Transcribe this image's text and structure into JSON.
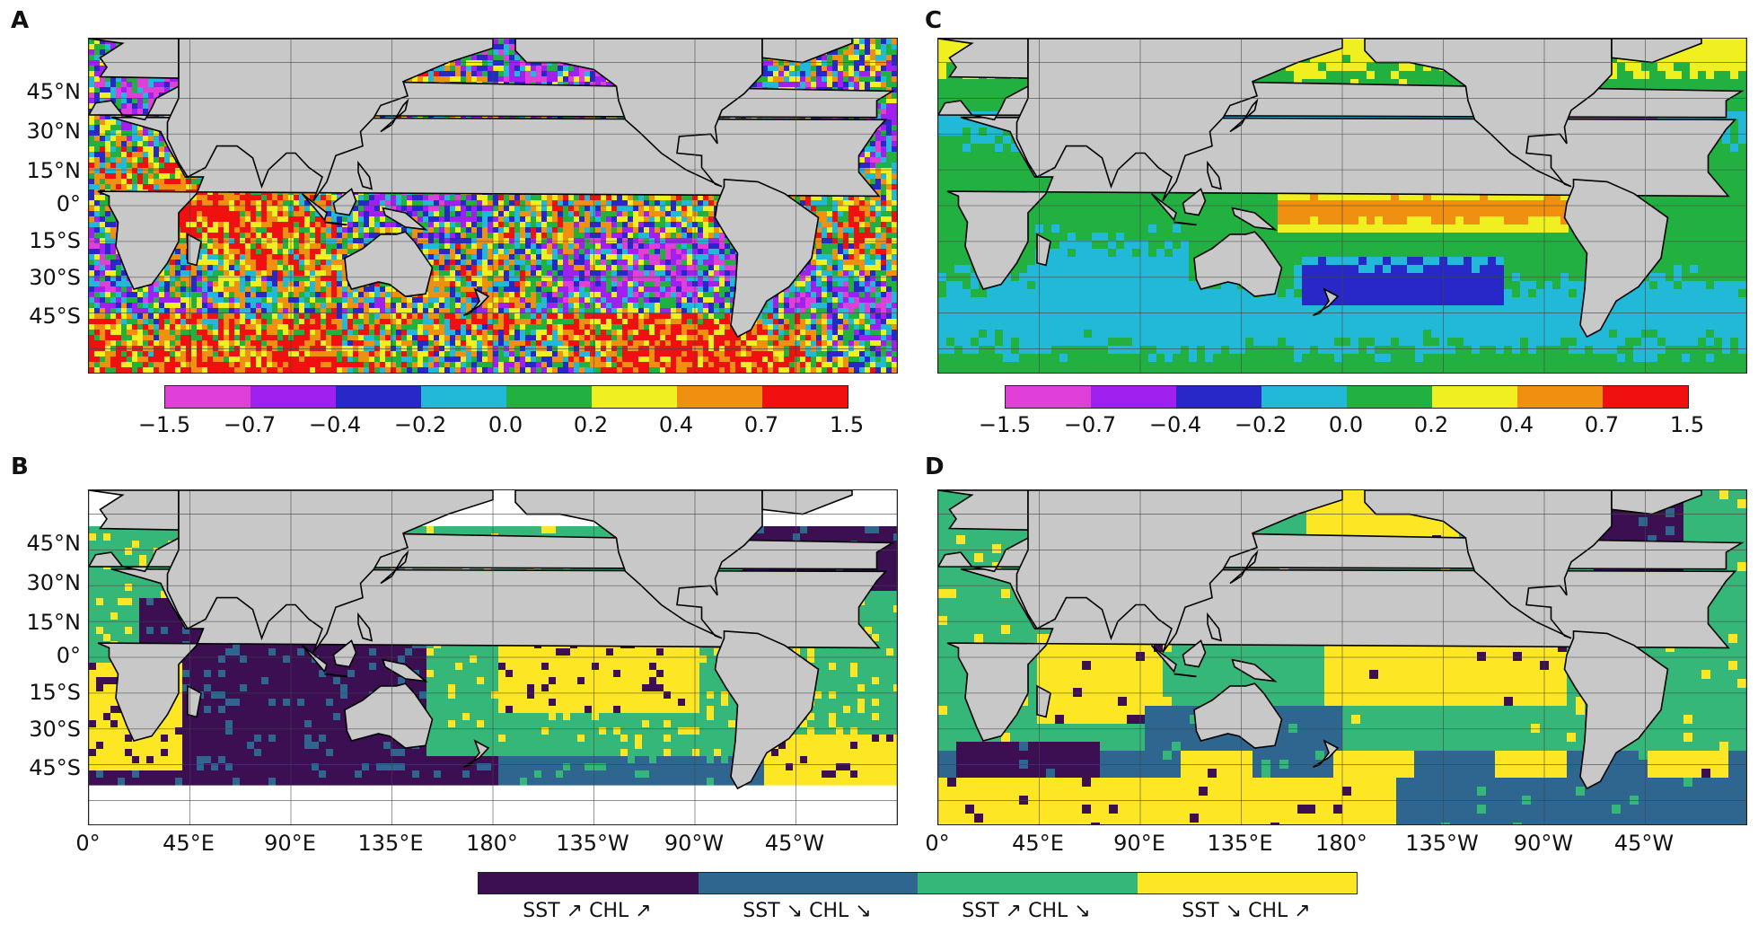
{
  "panels": [
    {
      "letter": "A",
      "kind": "continuous"
    },
    {
      "letter": "B",
      "kind": "categorical"
    },
    {
      "letter": "C",
      "kind": "continuous"
    },
    {
      "letter": "D",
      "kind": "categorical"
    }
  ],
  "lat_labels": [
    "45°N",
    "30°N",
    "15°N",
    "0°",
    "15°S",
    "30°S",
    "45°S"
  ],
  "lon_labels": [
    "0°",
    "45°E",
    "90°E",
    "135°E",
    "180°",
    "135°W",
    "90°W",
    "45°W"
  ],
  "continuous_colorbar": {
    "ticks": [
      "−1.5",
      "−0.7",
      "−0.4",
      "−0.2",
      "0.0",
      "0.2",
      "0.4",
      "0.7",
      "1.5"
    ],
    "colors": [
      "#e040d8",
      "#a020f0",
      "#2828c8",
      "#22b8d8",
      "#22b040",
      "#f0f020",
      "#f09010",
      "#f01010"
    ]
  },
  "categorical_colorbar": {
    "labels": [
      "SST ↗ CHL ↗",
      "SST ↘ CHL ↘",
      "SST ↗ CHL ↘",
      "SST ↘ CHL ↗"
    ],
    "colors": [
      "#3b0f52",
      "#2f6690",
      "#35b779",
      "#fde725"
    ]
  },
  "colors": {
    "land": "#c8c8c8",
    "coast": "#000000",
    "grid": "#444444"
  }
}
